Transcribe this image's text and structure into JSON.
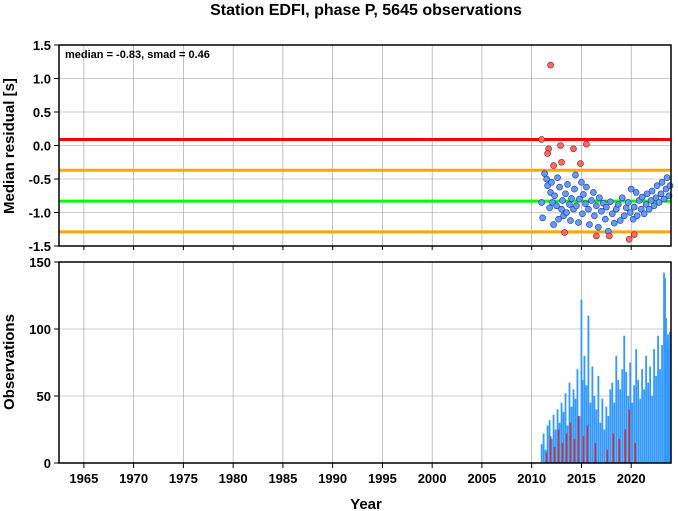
{
  "title": "Station EDFI, phase P, 5645 observations",
  "xlabel": "Year",
  "annotation": "median = -0.83, smad = 0.46",
  "x_ticks": [
    1965,
    1970,
    1975,
    1980,
    1985,
    1990,
    1995,
    2000,
    2005,
    2010,
    2015,
    2020
  ],
  "colors": {
    "red_line": "#ff0000",
    "orange_line": "#ffa500",
    "green_line": "#00ff00",
    "inlier": "#6699ff",
    "outlier": "#ff6666",
    "bar_blue": "#3399ff",
    "bar_red": "#cc3333"
  },
  "chart_data": [
    {
      "type": "scatter",
      "ylabel": "Median residual [s]",
      "xlim": [
        1962.5,
        2024.0
      ],
      "ylim": [
        -1.5,
        1.5
      ],
      "y_ticks": [
        "1.5",
        "1.0",
        "0.5",
        "0.0",
        "-0.5",
        "-1.0",
        "-1.5"
      ],
      "grid": true,
      "median": -0.83,
      "smad": 0.46,
      "hlines": [
        {
          "name": "upper limit",
          "y": 0.09,
          "color": "#ff0000"
        },
        {
          "name": "upper smad",
          "y": -0.37,
          "color": "#ffa500"
        },
        {
          "name": "median",
          "y": -0.83,
          "color": "#00ff00"
        },
        {
          "name": "lower smad",
          "y": -1.29,
          "color": "#ffa500"
        }
      ],
      "outliers": [
        [
          2011.0,
          0.09
        ],
        [
          2011.9,
          1.2
        ],
        [
          2011.7,
          -0.05
        ],
        [
          2011.6,
          -0.12
        ],
        [
          2012.2,
          -0.3
        ],
        [
          2012.9,
          0.0
        ],
        [
          2013.3,
          -1.3
        ],
        [
          2013.0,
          -0.25
        ],
        [
          2014.2,
          -0.05
        ],
        [
          2014.9,
          -0.27
        ],
        [
          2015.5,
          0.02
        ],
        [
          2016.5,
          -1.35
        ],
        [
          2017.8,
          -1.35
        ],
        [
          2019.8,
          -1.4
        ],
        [
          2020.3,
          -1.33
        ]
      ],
      "inliers": [
        [
          2011.0,
          -0.85
        ],
        [
          2011.1,
          -1.08
        ],
        [
          2011.3,
          -0.42
        ],
        [
          2011.5,
          -0.5
        ],
        [
          2011.6,
          -0.6
        ],
        [
          2011.8,
          -0.93
        ],
        [
          2011.9,
          -0.7
        ],
        [
          2012.0,
          -0.55
        ],
        [
          2012.1,
          -0.85
        ],
        [
          2012.2,
          -1.18
        ],
        [
          2012.3,
          -0.75
        ],
        [
          2012.5,
          -0.9
        ],
        [
          2012.6,
          -0.48
        ],
        [
          2012.7,
          -1.1
        ],
        [
          2012.8,
          -0.62
        ],
        [
          2013.0,
          -0.95
        ],
        [
          2013.1,
          -0.82
        ],
        [
          2013.2,
          -1.05
        ],
        [
          2013.4,
          -0.72
        ],
        [
          2013.5,
          -1.0
        ],
        [
          2013.6,
          -0.58
        ],
        [
          2013.8,
          -0.88
        ],
        [
          2013.9,
          -1.12
        ],
        [
          2014.0,
          -0.79
        ],
        [
          2014.2,
          -0.95
        ],
        [
          2014.3,
          -0.65
        ],
        [
          2014.4,
          -0.44
        ],
        [
          2014.5,
          -0.9
        ],
        [
          2014.7,
          -1.15
        ],
        [
          2014.8,
          -0.8
        ],
        [
          2015.0,
          -0.55
        ],
        [
          2015.1,
          -1.02
        ],
        [
          2015.2,
          -0.73
        ],
        [
          2015.4,
          -0.87
        ],
        [
          2015.5,
          -0.62
        ],
        [
          2015.7,
          -0.95
        ],
        [
          2015.8,
          -1.18
        ],
        [
          2016.0,
          -0.82
        ],
        [
          2016.2,
          -0.7
        ],
        [
          2016.3,
          -1.05
        ],
        [
          2016.5,
          -0.9
        ],
        [
          2016.7,
          -1.22
        ],
        [
          2016.8,
          -0.78
        ],
        [
          2017.0,
          -0.98
        ],
        [
          2017.2,
          -0.86
        ],
        [
          2017.4,
          -1.1
        ],
        [
          2017.5,
          -0.92
        ],
        [
          2017.7,
          -1.28
        ],
        [
          2017.9,
          -0.84
        ],
        [
          2018.1,
          -1.02
        ],
        [
          2018.3,
          -1.16
        ],
        [
          2018.5,
          -0.95
        ],
        [
          2018.7,
          -0.88
        ],
        [
          2018.9,
          -1.12
        ],
        [
          2019.1,
          -0.78
        ],
        [
          2019.3,
          -1.05
        ],
        [
          2019.5,
          -0.93
        ],
        [
          2019.7,
          -0.85
        ],
        [
          2019.9,
          -1.0
        ],
        [
          2020.0,
          -0.65
        ],
        [
          2020.2,
          -1.1
        ],
        [
          2020.3,
          -0.92
        ],
        [
          2020.5,
          -0.7
        ],
        [
          2020.6,
          -1.05
        ],
        [
          2020.8,
          -0.82
        ],
        [
          2021.0,
          -0.95
        ],
        [
          2021.1,
          -0.77
        ],
        [
          2021.3,
          -1.02
        ],
        [
          2021.5,
          -0.88
        ],
        [
          2021.6,
          -0.72
        ],
        [
          2021.8,
          -0.95
        ],
        [
          2022.0,
          -0.82
        ],
        [
          2022.1,
          -0.68
        ],
        [
          2022.3,
          -0.9
        ],
        [
          2022.5,
          -0.78
        ],
        [
          2022.6,
          -0.6
        ],
        [
          2022.8,
          -0.85
        ],
        [
          2023.0,
          -0.72
        ],
        [
          2023.1,
          -0.55
        ],
        [
          2023.3,
          -0.8
        ],
        [
          2023.5,
          -0.65
        ],
        [
          2023.6,
          -0.48
        ],
        [
          2023.8,
          -0.75
        ],
        [
          2023.9,
          -0.6
        ]
      ]
    },
    {
      "type": "bar",
      "ylabel": "Observations",
      "xlim": [
        1962.5,
        2024.0
      ],
      "ylim": [
        0,
        150
      ],
      "y_ticks": [
        "150",
        "100",
        "50",
        "0"
      ],
      "grid": true,
      "blue_bars": [
        [
          2011.0,
          14
        ],
        [
          2011.2,
          22
        ],
        [
          2011.4,
          10
        ],
        [
          2011.6,
          28
        ],
        [
          2011.8,
          32
        ],
        [
          2012.0,
          18
        ],
        [
          2012.2,
          36
        ],
        [
          2012.4,
          25
        ],
        [
          2012.6,
          40
        ],
        [
          2012.8,
          30
        ],
        [
          2013.0,
          45
        ],
        [
          2013.2,
          38
        ],
        [
          2013.4,
          52
        ],
        [
          2013.6,
          28
        ],
        [
          2013.8,
          60
        ],
        [
          2014.0,
          42
        ],
        [
          2014.2,
          55
        ],
        [
          2014.4,
          48
        ],
        [
          2014.6,
          70
        ],
        [
          2014.8,
          35
        ],
        [
          2015.0,
          122
        ],
        [
          2015.1,
          62
        ],
        [
          2015.3,
          80
        ],
        [
          2015.5,
          58
        ],
        [
          2015.7,
          110
        ],
        [
          2015.9,
          45
        ],
        [
          2016.1,
          72
        ],
        [
          2016.3,
          50
        ],
        [
          2016.5,
          40
        ],
        [
          2016.7,
          65
        ],
        [
          2016.9,
          30
        ],
        [
          2017.1,
          48
        ],
        [
          2017.3,
          25
        ],
        [
          2017.5,
          42
        ],
        [
          2017.7,
          35
        ],
        [
          2017.9,
          55
        ],
        [
          2018.1,
          60
        ],
        [
          2018.3,
          45
        ],
        [
          2018.5,
          80
        ],
        [
          2018.7,
          62
        ],
        [
          2018.9,
          55
        ],
        [
          2019.1,
          70
        ],
        [
          2019.3,
          95
        ],
        [
          2019.5,
          68
        ],
        [
          2019.7,
          50
        ],
        [
          2019.9,
          75
        ],
        [
          2020.1,
          45
        ],
        [
          2020.3,
          58
        ],
        [
          2020.5,
          85
        ],
        [
          2020.7,
          62
        ],
        [
          2020.9,
          48
        ],
        [
          2021.1,
          70
        ],
        [
          2021.3,
          55
        ],
        [
          2021.5,
          80
        ],
        [
          2021.7,
          60
        ],
        [
          2021.9,
          72
        ],
        [
          2022.1,
          50
        ],
        [
          2022.3,
          85
        ],
        [
          2022.5,
          65
        ],
        [
          2022.7,
          95
        ],
        [
          2022.9,
          70
        ],
        [
          2023.1,
          88
        ],
        [
          2023.3,
          142
        ],
        [
          2023.4,
          138
        ],
        [
          2023.5,
          108
        ],
        [
          2023.6,
          92
        ],
        [
          2023.7,
          96
        ],
        [
          2023.8,
          85
        ],
        [
          2023.9,
          98
        ]
      ],
      "red_bars": [
        [
          2011.5,
          8
        ],
        [
          2011.9,
          20
        ],
        [
          2012.3,
          12
        ],
        [
          2012.7,
          25
        ],
        [
          2013.1,
          15
        ],
        [
          2013.5,
          22
        ],
        [
          2013.9,
          30
        ],
        [
          2014.3,
          18
        ],
        [
          2014.7,
          35
        ],
        [
          2015.2,
          20
        ],
        [
          2015.6,
          28
        ],
        [
          2016.4,
          15
        ],
        [
          2017.6,
          10
        ],
        [
          2018.2,
          22
        ],
        [
          2018.8,
          18
        ],
        [
          2019.4,
          25
        ],
        [
          2019.8,
          40
        ],
        [
          2020.4,
          15
        ]
      ]
    }
  ]
}
